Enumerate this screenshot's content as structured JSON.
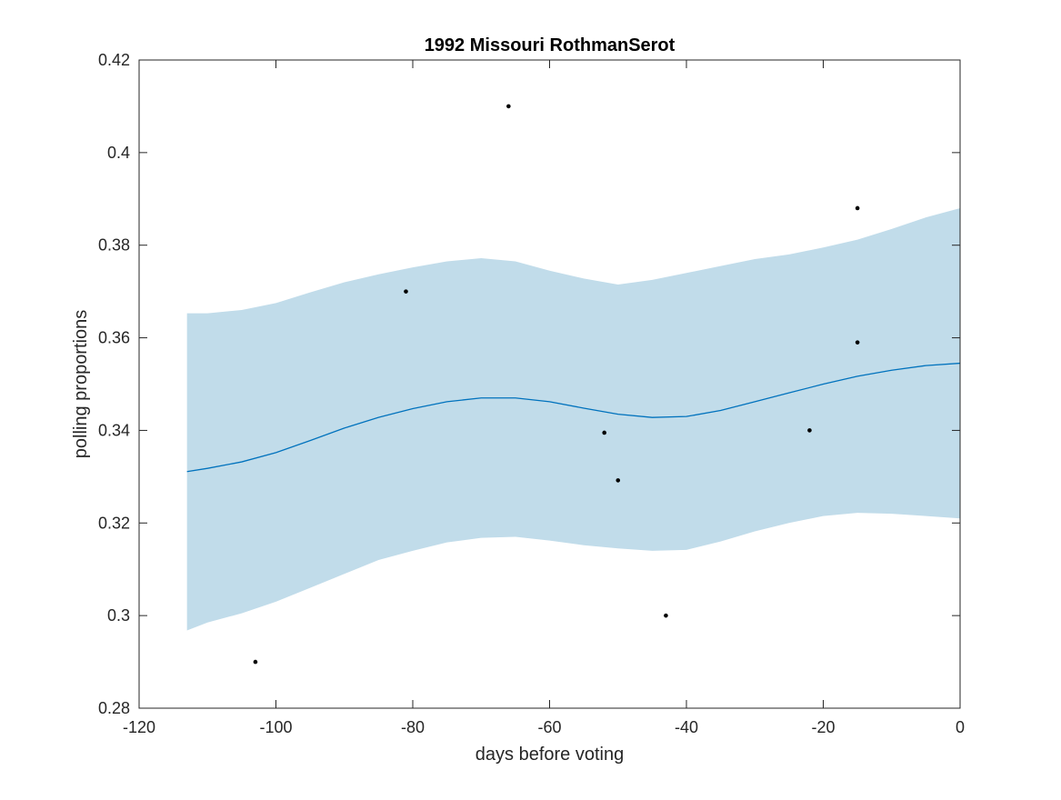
{
  "chart_data": {
    "type": "line",
    "title": "1992 Missouri RothmanSerot",
    "xlabel": "days before voting",
    "ylabel": "polling proportions",
    "xlim": [
      -120,
      0
    ],
    "ylim": [
      0.28,
      0.42
    ],
    "x_ticks": [
      -120,
      -100,
      -80,
      -60,
      -40,
      -20,
      0
    ],
    "x_tick_labels": [
      "-120",
      "-100",
      "-80",
      "-60",
      "-40",
      "-20",
      "0"
    ],
    "y_ticks": [
      0.28,
      0.3,
      0.32,
      0.34,
      0.36,
      0.38,
      0.4,
      0.42
    ],
    "y_tick_labels": [
      "0.28",
      "0.3",
      "0.32",
      "0.34",
      "0.36",
      "0.38",
      "0.4",
      "0.42"
    ],
    "grid": false,
    "colors": {
      "band": "#c1dcea",
      "line": "#0072bd",
      "points": "#000000",
      "axes": "#262626"
    },
    "band": {
      "x": [
        -113,
        -110,
        -105,
        -100,
        -95,
        -90,
        -85,
        -80,
        -75,
        -70,
        -65,
        -60,
        -55,
        -50,
        -45,
        -40,
        -35,
        -30,
        -25,
        -20,
        -15,
        -10,
        -5,
        0
      ],
      "upper": [
        0.3653,
        0.3653,
        0.366,
        0.3675,
        0.3698,
        0.372,
        0.3737,
        0.3752,
        0.3765,
        0.3772,
        0.3765,
        0.3745,
        0.3728,
        0.3715,
        0.3725,
        0.374,
        0.3755,
        0.377,
        0.378,
        0.3795,
        0.3812,
        0.3835,
        0.386,
        0.388
      ],
      "lower": [
        0.2968,
        0.2985,
        0.3005,
        0.303,
        0.306,
        0.309,
        0.312,
        0.314,
        0.3158,
        0.3168,
        0.317,
        0.3162,
        0.3152,
        0.3145,
        0.314,
        0.3142,
        0.316,
        0.3182,
        0.32,
        0.3215,
        0.3222,
        0.322,
        0.3215,
        0.321
      ]
    },
    "series": [
      {
        "type": "line",
        "x": [
          -113,
          -110,
          -105,
          -100,
          -95,
          -90,
          -85,
          -80,
          -75,
          -70,
          -65,
          -60,
          -55,
          -50,
          -45,
          -40,
          -35,
          -30,
          -25,
          -20,
          -15,
          -10,
          -5,
          0
        ],
        "values": [
          0.3311,
          0.3318,
          0.3332,
          0.3352,
          0.3378,
          0.3405,
          0.3428,
          0.3447,
          0.3462,
          0.347,
          0.347,
          0.3462,
          0.3448,
          0.3435,
          0.3428,
          0.343,
          0.3443,
          0.3462,
          0.3481,
          0.35,
          0.3517,
          0.353,
          0.354,
          0.3545
        ]
      },
      {
        "type": "scatter",
        "x": [
          -103,
          -81,
          -66,
          -52,
          -50,
          -43,
          -22,
          -15,
          -15
        ],
        "values": [
          0.29,
          0.37,
          0.41,
          0.3395,
          0.3292,
          0.3,
          0.34,
          0.388,
          0.359
        ]
      }
    ]
  }
}
